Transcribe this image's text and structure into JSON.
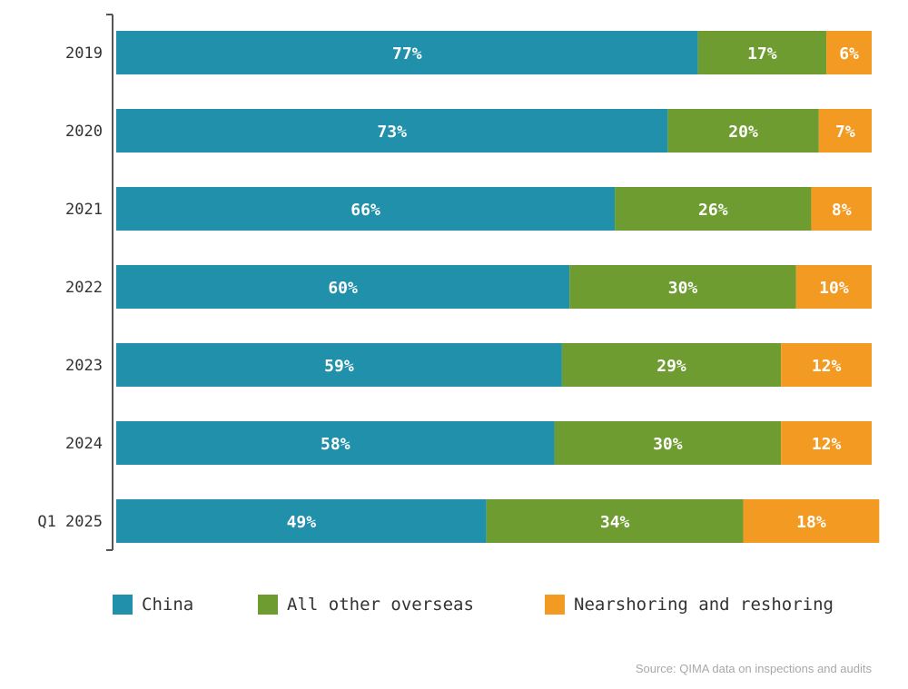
{
  "chart_data": {
    "type": "bar",
    "orientation": "horizontal",
    "stacked": true,
    "categories": [
      "2019",
      "2020",
      "2021",
      "2022",
      "2023",
      "2024",
      "Q1 2025"
    ],
    "series": [
      {
        "name": "China",
        "values": [
          77,
          73,
          66,
          60,
          59,
          58,
          49
        ],
        "color": "#2090ab"
      },
      {
        "name": "All other overseas",
        "values": [
          17,
          20,
          26,
          30,
          29,
          30,
          34
        ],
        "color": "#6f9c30"
      },
      {
        "name": "Nearshoring and reshoring",
        "values": [
          6,
          7,
          8,
          10,
          12,
          12,
          18
        ],
        "color": "#f39a22"
      }
    ],
    "value_suffix": "%",
    "xlim": [
      0,
      100
    ],
    "grid": false,
    "legend_position": "bottom"
  },
  "source": "Source: QIMA data on inspections and audits"
}
